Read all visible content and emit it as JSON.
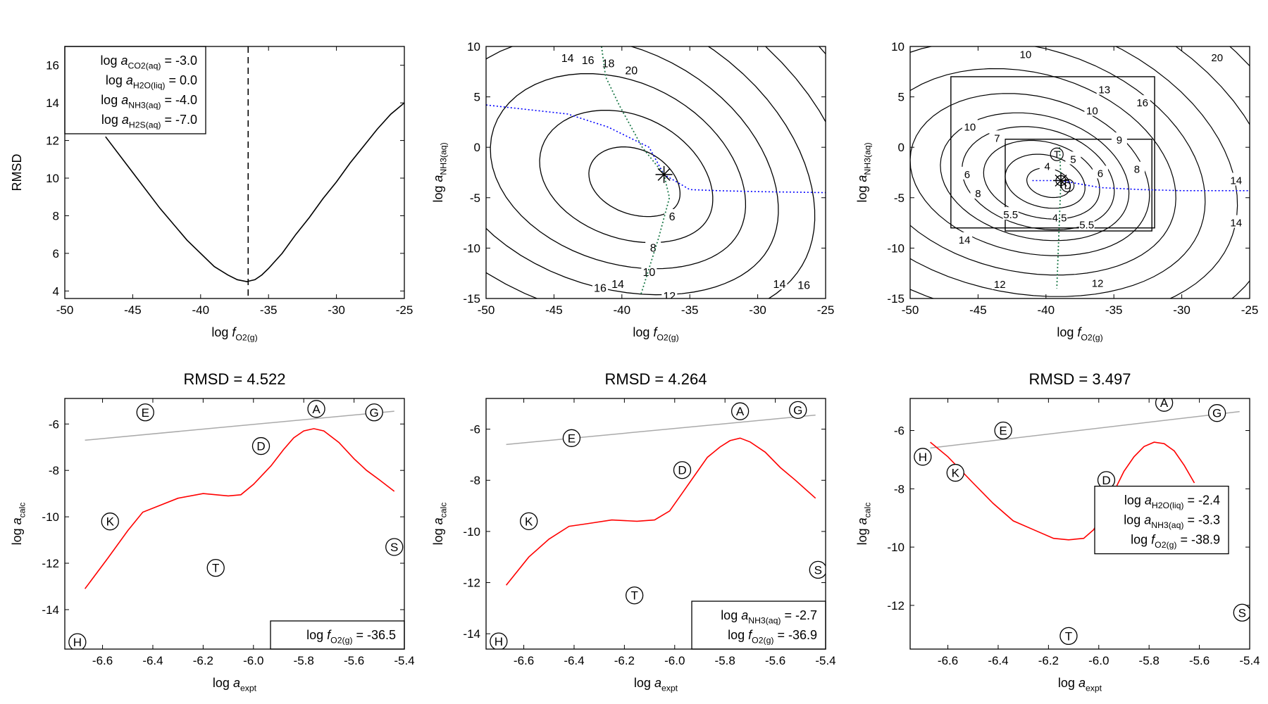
{
  "chart_data": [
    {
      "id": "p1",
      "type": "line",
      "xlabel": "log f_O2(g)",
      "ylabel": "RMSD",
      "xlim": [
        -50,
        -25
      ],
      "ylim": [
        3.6,
        17
      ],
      "xticks": [
        -50,
        -45,
        -40,
        -35,
        -30,
        -25
      ],
      "yticks": [
        4,
        6,
        8,
        10,
        12,
        14,
        16
      ],
      "grid": false,
      "series": [
        {
          "x": [
            -47,
            -45,
            -43,
            -41,
            -39,
            -38,
            -37.3,
            -36.6,
            -36.3,
            -36,
            -35.5,
            -35,
            -34,
            -33,
            -32,
            -31,
            -30,
            -29,
            -28,
            -27,
            -26,
            -25
          ],
          "y": [
            12.2,
            10.3,
            8.4,
            6.7,
            5.3,
            4.85,
            4.6,
            4.5,
            4.55,
            4.6,
            4.85,
            5.2,
            6.0,
            7.0,
            7.9,
            8.9,
            9.8,
            10.8,
            11.7,
            12.6,
            13.4,
            14.0
          ],
          "style": "solid"
        }
      ],
      "vline": -36.5,
      "legend": {
        "placement": "top-left",
        "lines": [
          {
            "pre": "log ",
            "a": "a",
            "sub": "CO2(aq)",
            "val": " = -3.0"
          },
          {
            "pre": "log ",
            "a": "a",
            "sub": "H2O(liq)",
            "val": " = 0.0"
          },
          {
            "pre": "log ",
            "a": "a",
            "sub": "NH3(aq)",
            "val": " = -4.0"
          },
          {
            "pre": "log ",
            "a": "a",
            "sub": "H2S(aq)",
            "val": " = -7.0"
          }
        ]
      }
    },
    {
      "id": "p2",
      "type": "contour",
      "xlabel": "log f_O2(g)",
      "ylabel": "log a_NH3(aq)",
      "xlim": [
        -50,
        -25
      ],
      "ylim": [
        -15,
        10
      ],
      "xticks": [
        -50,
        -45,
        -40,
        -35,
        -30,
        -25
      ],
      "yticks": [
        -15,
        -10,
        -5,
        0,
        5,
        10
      ],
      "minimum": {
        "x": -36.9,
        "y": -2.7
      },
      "contour_levels": [
        6,
        8,
        10,
        12,
        14,
        16,
        18,
        20
      ],
      "contour_labels": [
        "6",
        "8",
        "10",
        "12",
        "14",
        "16",
        "18",
        "20",
        "14",
        "16",
        "14",
        "16"
      ],
      "blue_path": {
        "x": [
          -50,
          -44,
          -41,
          -38,
          -36.9,
          -35,
          -33,
          -30,
          -25
        ],
        "y": [
          4.2,
          3.3,
          2.0,
          0.0,
          -2.7,
          -4.2,
          -4.3,
          -4.4,
          -4.5
        ]
      },
      "green_path": {
        "x": [
          -41.5,
          -41.2,
          -40.2,
          -38.5,
          -36.9,
          -36.5,
          -37.3,
          -38.6
        ],
        "y": [
          10,
          7,
          4.2,
          0,
          -2.7,
          -5.0,
          -9.0,
          -14.6
        ]
      }
    },
    {
      "id": "p3",
      "type": "contour",
      "xlabel": "log f_O2(g)",
      "ylabel": "log a_NH3(aq)",
      "xlim": [
        -50,
        -25
      ],
      "ylim": [
        -15,
        10
      ],
      "xticks": [
        -50,
        -45,
        -40,
        -35,
        -30,
        -25
      ],
      "yticks": [
        -15,
        -10,
        -5,
        0,
        5,
        10
      ],
      "minimum": {
        "x": -38.9,
        "y": -3.3
      },
      "zoom_boxes": [
        {
          "x": [
            -47,
            -32
          ],
          "y": [
            -8,
            7
          ]
        },
        {
          "x": [
            -43,
            -32.2
          ],
          "y": [
            -8.3,
            0.8
          ]
        }
      ],
      "contour_labels": [
        "10",
        "20",
        "13",
        "16",
        "10",
        "9",
        "8",
        "6",
        "7",
        "10",
        "6",
        "8",
        "5.5",
        "4.5",
        "5.5",
        "5",
        "4",
        "14",
        "12",
        "12",
        "14",
        "14"
      ],
      "letters": [
        "T",
        "D"
      ],
      "blue_path": {
        "x": [
          -41,
          -38.9,
          -36,
          -33,
          -30,
          -25
        ],
        "y": [
          -3.3,
          -3.3,
          -4.0,
          -4.2,
          -4.3,
          -4.3
        ]
      },
      "green_path": {
        "x": [
          -39,
          -38.9,
          -39.2
        ],
        "y": [
          0,
          -3.3,
          -14
        ]
      }
    },
    {
      "id": "p4",
      "type": "line",
      "title": "RMSD = 4.522",
      "xlabel": "log a_expt",
      "ylabel": "log a_calc",
      "xlim": [
        -6.75,
        -5.4
      ],
      "ylim": [
        -15.7,
        -4.9
      ],
      "xticks": [
        -6.6,
        -6.4,
        -6.2,
        -6.0,
        -5.8,
        -5.6,
        -5.4
      ],
      "yticks": [
        -14,
        -12,
        -10,
        -8,
        -6
      ],
      "gray_line": {
        "x": [
          -6.67,
          -5.44
        ],
        "y": [
          -6.7,
          -5.45
        ]
      },
      "series": [
        {
          "x": [
            -6.67,
            -6.58,
            -6.5,
            -6.44,
            -6.3,
            -6.2,
            -6.1,
            -6.05,
            -6.0,
            -5.93,
            -5.88,
            -5.84,
            -5.8,
            -5.76,
            -5.72,
            -5.66,
            -5.6,
            -5.55,
            -5.5,
            -5.44
          ],
          "y": [
            -13.1,
            -11.8,
            -10.6,
            -9.8,
            -9.2,
            -9.0,
            -9.1,
            -9.05,
            -8.6,
            -7.8,
            -7.1,
            -6.6,
            -6.3,
            -6.2,
            -6.3,
            -6.8,
            -7.5,
            -8.0,
            -8.4,
            -8.9
          ]
        }
      ],
      "points": [
        {
          "label": "E",
          "x": -6.43,
          "y": -5.5
        },
        {
          "label": "A",
          "x": -5.75,
          "y": -5.35
        },
        {
          "label": "G",
          "x": -5.52,
          "y": -5.5
        },
        {
          "label": "D",
          "x": -5.97,
          "y": -6.95
        },
        {
          "label": "K",
          "x": -6.57,
          "y": -10.2
        },
        {
          "label": "T",
          "x": -6.15,
          "y": -12.2
        },
        {
          "label": "S",
          "x": -5.44,
          "y": -11.3
        },
        {
          "label": "H",
          "x": -6.7,
          "y": -15.4
        }
      ],
      "legend": {
        "placement": "bottom-right",
        "lines": [
          {
            "pre": "log ",
            "a": "f",
            "sub": "O2(g)",
            "val": " = -36.5"
          }
        ]
      }
    },
    {
      "id": "p5",
      "type": "line",
      "title": "RMSD = 4.264",
      "xlabel": "log a_expt",
      "ylabel": "log a_calc",
      "xlim": [
        -6.75,
        -5.4
      ],
      "ylim": [
        -14.6,
        -4.8
      ],
      "xticks": [
        -6.6,
        -6.4,
        -6.2,
        -6.0,
        -5.8,
        -5.6,
        -5.4
      ],
      "yticks": [
        -14,
        -12,
        -10,
        -8,
        -6
      ],
      "gray_line": {
        "x": [
          -6.67,
          -5.44
        ],
        "y": [
          -6.6,
          -5.45
        ]
      },
      "series": [
        {
          "x": [
            -6.67,
            -6.58,
            -6.5,
            -6.42,
            -6.35,
            -6.25,
            -6.15,
            -6.08,
            -6.02,
            -5.97,
            -5.92,
            -5.87,
            -5.82,
            -5.78,
            -5.74,
            -5.7,
            -5.64,
            -5.58,
            -5.52,
            -5.44
          ],
          "y": [
            -12.1,
            -11.0,
            -10.3,
            -9.8,
            -9.7,
            -9.55,
            -9.6,
            -9.55,
            -9.2,
            -8.5,
            -7.8,
            -7.1,
            -6.7,
            -6.45,
            -6.35,
            -6.5,
            -6.9,
            -7.5,
            -8.0,
            -8.7
          ]
        }
      ],
      "points": [
        {
          "label": "E",
          "x": -6.41,
          "y": -6.35
        },
        {
          "label": "A",
          "x": -5.74,
          "y": -5.3
        },
        {
          "label": "G",
          "x": -5.51,
          "y": -5.25
        },
        {
          "label": "D",
          "x": -5.97,
          "y": -7.6
        },
        {
          "label": "K",
          "x": -6.58,
          "y": -9.6
        },
        {
          "label": "T",
          "x": -6.16,
          "y": -12.5
        },
        {
          "label": "S",
          "x": -5.43,
          "y": -11.5
        },
        {
          "label": "H",
          "x": -6.7,
          "y": -14.3
        }
      ],
      "legend": {
        "placement": "bottom-right",
        "lines": [
          {
            "pre": "log ",
            "a": "a",
            "sub": "NH3(aq)",
            "val": " = -2.7"
          },
          {
            "pre": "log ",
            "a": "f",
            "sub": "O2(g)",
            "val": " = -36.9"
          }
        ]
      }
    },
    {
      "id": "p6",
      "type": "line",
      "title": "RMSD = 3.497",
      "xlabel": "log a_expt",
      "ylabel": "log a_calc",
      "xlim": [
        -6.75,
        -5.4
      ],
      "ylim": [
        -13.5,
        -4.9
      ],
      "xticks": [
        -6.6,
        -6.4,
        -6.2,
        -6.0,
        -5.8,
        -5.6,
        -5.4
      ],
      "yticks": [
        -12,
        -10,
        -8,
        -6
      ],
      "gray_line": {
        "x": [
          -6.67,
          -5.44
        ],
        "y": [
          -6.6,
          -5.35
        ]
      },
      "series": [
        {
          "x": [
            -6.67,
            -6.6,
            -6.5,
            -6.42,
            -6.34,
            -6.26,
            -6.18,
            -6.12,
            -6.06,
            -6.02,
            -5.98,
            -5.94,
            -5.9,
            -5.86,
            -5.82,
            -5.78,
            -5.74,
            -5.7,
            -5.66,
            -5.62
          ],
          "y": [
            -6.4,
            -6.9,
            -7.8,
            -8.5,
            -9.1,
            -9.4,
            -9.7,
            -9.75,
            -9.7,
            -9.4,
            -8.8,
            -8.1,
            -7.4,
            -6.9,
            -6.55,
            -6.4,
            -6.45,
            -6.7,
            -7.2,
            -7.8
          ]
        }
      ],
      "points": [
        {
          "label": "E",
          "x": -6.38,
          "y": -6.0
        },
        {
          "label": "A",
          "x": -5.74,
          "y": -5.05
        },
        {
          "label": "G",
          "x": -5.53,
          "y": -5.4
        },
        {
          "label": "H",
          "x": -6.7,
          "y": -6.9
        },
        {
          "label": "K",
          "x": -6.57,
          "y": -7.45
        },
        {
          "label": "D",
          "x": -5.97,
          "y": -7.7
        },
        {
          "label": "S",
          "x": -5.43,
          "y": -12.25
        },
        {
          "label": "T",
          "x": -6.12,
          "y": -13.05
        }
      ],
      "legend": {
        "placement": "right",
        "lines": [
          {
            "pre": "log ",
            "a": "a",
            "sub": "H2O(liq)",
            "val": " = -2.4"
          },
          {
            "pre": "log ",
            "a": "a",
            "sub": "NH3(aq)",
            "val": " = -3.3"
          },
          {
            "pre": "log ",
            "a": "f",
            "sub": "O2(g)",
            "val": " = -38.9"
          }
        ]
      }
    }
  ],
  "colors": {
    "axis": "#000000",
    "curve": "#ff0000",
    "reference": "#aaaaaa",
    "blue_path": "#0000ff",
    "green_path": "#1e7a4a",
    "contour": "#000000"
  }
}
